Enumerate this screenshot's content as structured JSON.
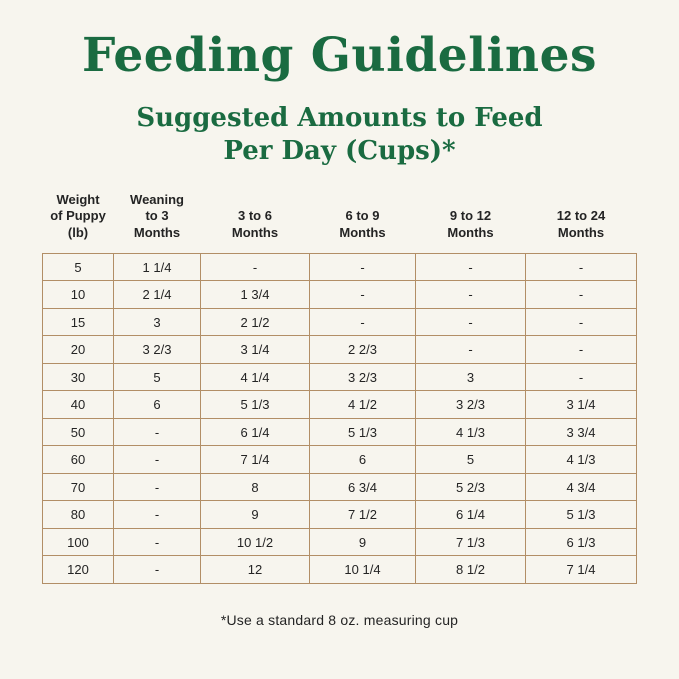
{
  "header": {
    "title": "Feeding Guidelines",
    "subtitle_line1": "Suggested Amounts to Feed",
    "subtitle_line2": "Per Day (Cups)*"
  },
  "footnote": {
    "text": "*Use a standard 8 oz. measuring cup"
  },
  "colors": {
    "background": "#f7f5ee",
    "heading_green": "#1a6b41",
    "table_border": "#b28e66",
    "text": "#242424"
  },
  "chart_data": {
    "type": "table",
    "title": "Feeding Guidelines - Suggested Amounts to Feed Per Day (Cups)",
    "columns": [
      "Weight\nof Puppy\n(lb)",
      "Weaning\nto 3\nMonths",
      "3 to 6\nMonths",
      "6 to 9\nMonths",
      "9 to 12\nMonths",
      "12 to 24\nMonths"
    ],
    "rows": [
      [
        "5",
        "1 1/4",
        "-",
        "-",
        "-",
        "-"
      ],
      [
        "10",
        "2 1/4",
        "1 3/4",
        "-",
        "-",
        "-"
      ],
      [
        "15",
        "3",
        "2 1/2",
        "-",
        "-",
        "-"
      ],
      [
        "20",
        "3 2/3",
        "3 1/4",
        "2 2/3",
        "-",
        "-"
      ],
      [
        "30",
        "5",
        "4 1/4",
        "3 2/3",
        "3",
        "-"
      ],
      [
        "40",
        "6",
        "5 1/3",
        "4 1/2",
        "3 2/3",
        "3 1/4"
      ],
      [
        "50",
        "-",
        "6 1/4",
        "5 1/3",
        "4 1/3",
        "3 3/4"
      ],
      [
        "60",
        "-",
        "7 1/4",
        "6",
        "5",
        "4 1/3"
      ],
      [
        "70",
        "-",
        "8",
        "6 3/4",
        "5 2/3",
        "4 3/4"
      ],
      [
        "80",
        "-",
        "9",
        "7 1/2",
        "6 1/4",
        "5 1/3"
      ],
      [
        "100",
        "-",
        "10 1/2",
        "9",
        "7 1/3",
        "6 1/3"
      ],
      [
        "120",
        "-",
        "12",
        "10 1/4",
        "8 1/2",
        "7 1/4"
      ]
    ]
  }
}
